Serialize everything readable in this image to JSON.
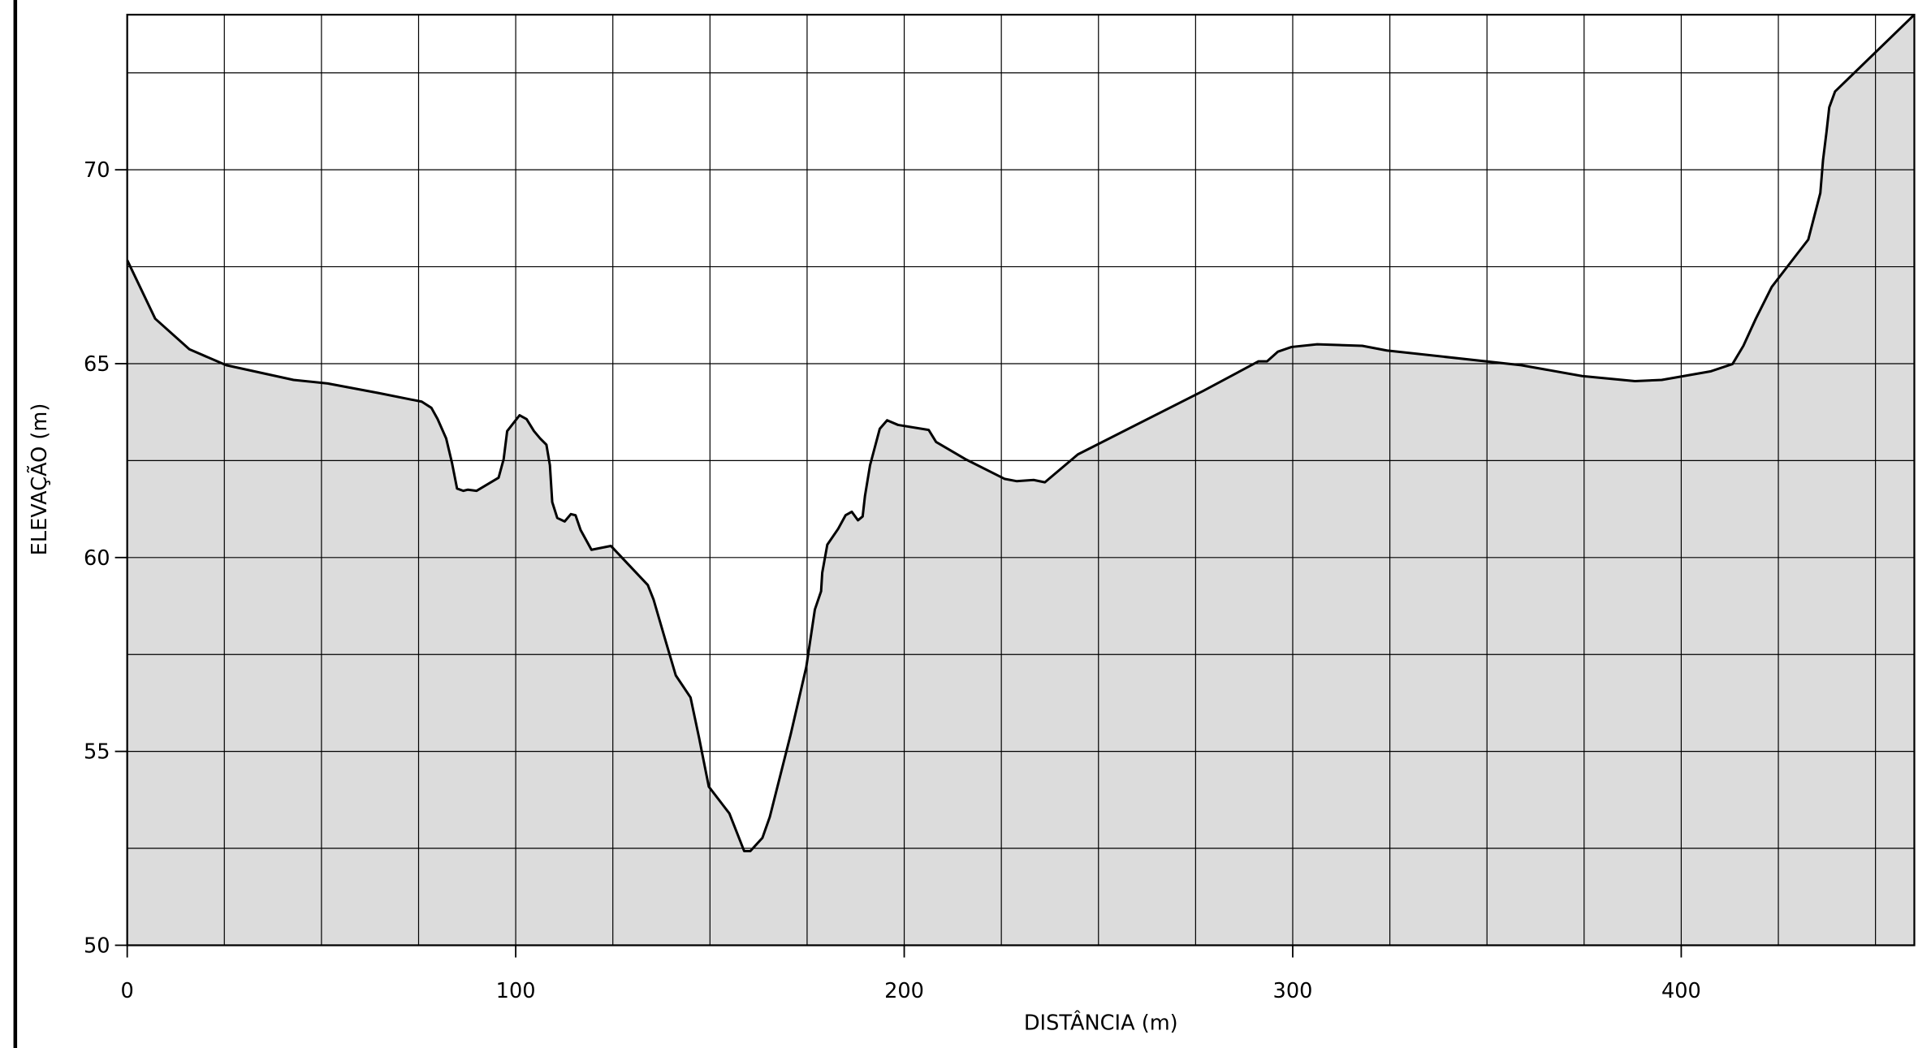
{
  "chart_data": {
    "type": "area",
    "x_label": "DISTÂNCIA  (m)",
    "y_label": "ELEVAÇÃO  (m)",
    "x": [
      0,
      7.2,
      16.0,
      25.5,
      42.8,
      51.6,
      64.8,
      75.8,
      78.3,
      79.9,
      82.1,
      83.6,
      84.9,
      86.5,
      87.7,
      89.9,
      93.1,
      95.6,
      96.9,
      97.8,
      101.0,
      102.8,
      104.7,
      106.3,
      107.9,
      108.8,
      109.4,
      110.7,
      112.6,
      114.2,
      115.4,
      116.7,
      119.5,
      124.5,
      134.0,
      135.5,
      138.7,
      141.2,
      145.0,
      147.2,
      149.7,
      155.0,
      158.8,
      160.4,
      163.5,
      165.4,
      170.8,
      174.8,
      177.0,
      178.6,
      178.9,
      180.2,
      183.0,
      184.9,
      186.5,
      188.1,
      189.3,
      189.9,
      191.2,
      193.7,
      195.6,
      198.4,
      206.3,
      208.2,
      215.7,
      225.8,
      228.9,
      233.3,
      236.2,
      244.7,
      277.0,
      291.2,
      293.4,
      296.2,
      299.7,
      306.3,
      317.9,
      324.2,
      358.8,
      374.5,
      388.1,
      395.0,
      407.5,
      413.2,
      416.0,
      419.2,
      423.3,
      429.6,
      432.7,
      435.8,
      436.5,
      437.4,
      438.1,
      439.6,
      460
    ],
    "values": [
      67.67,
      66.16,
      65.37,
      64.96,
      64.58,
      64.49,
      64.24,
      64.02,
      63.86,
      63.57,
      63.07,
      62.44,
      61.78,
      61.72,
      61.75,
      61.72,
      61.91,
      62.06,
      62.54,
      63.26,
      63.67,
      63.57,
      63.26,
      63.07,
      62.91,
      62.38,
      61.43,
      61.02,
      60.93,
      61.12,
      61.09,
      60.71,
      60.2,
      60.3,
      59.29,
      58.91,
      57.81,
      56.96,
      56.39,
      55.35,
      54.09,
      53.4,
      52.43,
      52.43,
      52.77,
      53.31,
      55.45,
      57.18,
      58.66,
      59.13,
      59.61,
      60.33,
      60.74,
      61.09,
      61.18,
      60.96,
      61.06,
      61.59,
      62.38,
      63.32,
      63.54,
      63.42,
      63.29,
      62.98,
      62.54,
      62.03,
      61.97,
      62.0,
      61.94,
      62.66,
      64.3,
      65.06,
      65.06,
      65.31,
      65.43,
      65.5,
      65.46,
      65.34,
      64.96,
      64.68,
      64.55,
      64.58,
      64.8,
      64.99,
      65.46,
      66.16,
      66.98,
      67.8,
      68.2,
      69.4,
      70.25,
      70.98,
      71.61,
      72.02,
      74.0
    ],
    "fill_color": "#dcdcdc",
    "line_color": "#000000",
    "xlim": [
      0,
      460
    ],
    "ylim": [
      50,
      74
    ],
    "xticks": [
      0,
      100,
      200,
      300,
      400
    ],
    "yticks": [
      50,
      55,
      60,
      65,
      70
    ],
    "xgrid": [
      0,
      25,
      50,
      75,
      100,
      125,
      150,
      175,
      200,
      225,
      250,
      275,
      300,
      325,
      350,
      375,
      400,
      425,
      450
    ],
    "ygrid": [
      50,
      52.5,
      55,
      57.5,
      60,
      62.5,
      65,
      67.5,
      70,
      72.5
    ],
    "grid": true
  }
}
